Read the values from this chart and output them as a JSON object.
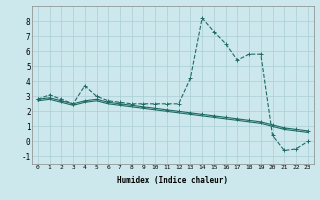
{
  "xlabel": "Humidex (Indice chaleur)",
  "bg_color": "#cce8ec",
  "grid_color": "#aacdd4",
  "line_color": "#1e6b65",
  "xlim": [
    -0.5,
    23.5
  ],
  "ylim": [
    -1.5,
    9.0
  ],
  "xticks": [
    0,
    1,
    2,
    3,
    4,
    5,
    6,
    7,
    8,
    9,
    10,
    11,
    12,
    13,
    14,
    15,
    16,
    17,
    18,
    19,
    20,
    21,
    22,
    23
  ],
  "yticks": [
    -1,
    0,
    1,
    2,
    3,
    4,
    5,
    6,
    7,
    8
  ],
  "series": [
    {
      "x": [
        0,
        1,
        2,
        3,
        4,
        5,
        6,
        7,
        8,
        9,
        10,
        11,
        12,
        13,
        14,
        15,
        16,
        17,
        18,
        19,
        20,
        21,
        22,
        23
      ],
      "y": [
        2.8,
        3.1,
        2.8,
        2.5,
        3.7,
        3.0,
        2.7,
        2.6,
        2.5,
        2.5,
        2.5,
        2.5,
        2.5,
        4.2,
        8.2,
        7.3,
        6.5,
        5.4,
        5.8,
        5.8,
        0.4,
        -0.6,
        -0.5,
        0.0
      ],
      "linestyle": "--",
      "marker": true
    },
    {
      "x": [
        0,
        1,
        2,
        3,
        4,
        5,
        6,
        7,
        8,
        9,
        10,
        11,
        12,
        13,
        14,
        15,
        16,
        17,
        18,
        19,
        20,
        21,
        22,
        23
      ],
      "y": [
        2.8,
        2.9,
        2.7,
        2.5,
        2.7,
        2.8,
        2.6,
        2.5,
        2.4,
        2.3,
        2.2,
        2.1,
        2.0,
        1.9,
        1.8,
        1.7,
        1.6,
        1.5,
        1.4,
        1.3,
        1.1,
        0.9,
        0.8,
        0.7
      ],
      "linestyle": "-",
      "marker": true
    },
    {
      "x": [
        0,
        1,
        2,
        3,
        4,
        5,
        6,
        7,
        8,
        9,
        10,
        11,
        12,
        13,
        14,
        15,
        16,
        17,
        18,
        19,
        20,
        21,
        22,
        23
      ],
      "y": [
        2.7,
        2.8,
        2.6,
        2.4,
        2.6,
        2.7,
        2.5,
        2.4,
        2.3,
        2.2,
        2.1,
        2.0,
        1.9,
        1.8,
        1.7,
        1.6,
        1.5,
        1.4,
        1.3,
        1.2,
        1.0,
        0.8,
        0.7,
        0.6
      ],
      "linestyle": "-",
      "marker": false
    }
  ]
}
